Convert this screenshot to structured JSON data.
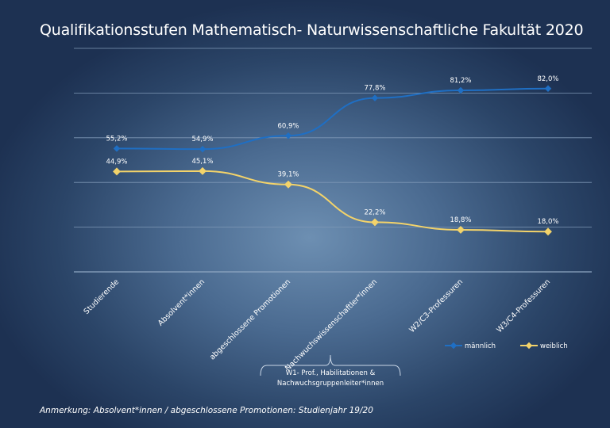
{
  "chart_data": {
    "type": "line",
    "title": "Qualifikationsstufen Mathematisch- Naturwissenschaftliche Fakultät 2020",
    "categories": [
      "Studierende",
      "Absolvent*innen",
      "abgeschlossene Promotionen",
      "Nachwuchswissenschaftler*innen",
      "W2/C3-Professuren",
      "W3/C4-Professuren"
    ],
    "series": [
      {
        "name": "männlich",
        "values": [
          55.2,
          54.9,
          60.9,
          77.8,
          81.2,
          82.0
        ],
        "labels": [
          "55,2%",
          "54,9%",
          "60,9%",
          "77,8%",
          "81,2%",
          "82,0%"
        ],
        "color": "#1f6fc4"
      },
      {
        "name": "weiblich",
        "values": [
          44.9,
          45.1,
          39.1,
          22.2,
          18.8,
          18.0
        ],
        "labels": [
          "44,9%",
          "45,1%",
          "39,1%",
          "22,2%",
          "18,8%",
          "18,0%"
        ],
        "color": "#f3d36a"
      }
    ],
    "ylim": [
      0,
      100
    ],
    "grid": true,
    "legend": "bottom-right",
    "annotation": "W1- Prof., Habilitationen & Nachwuchsgruppenleiter*innen"
  },
  "footnote": "Anmerkung: Absolvent*innen / abgeschlossene Promotionen: Studienjahr 19/20"
}
